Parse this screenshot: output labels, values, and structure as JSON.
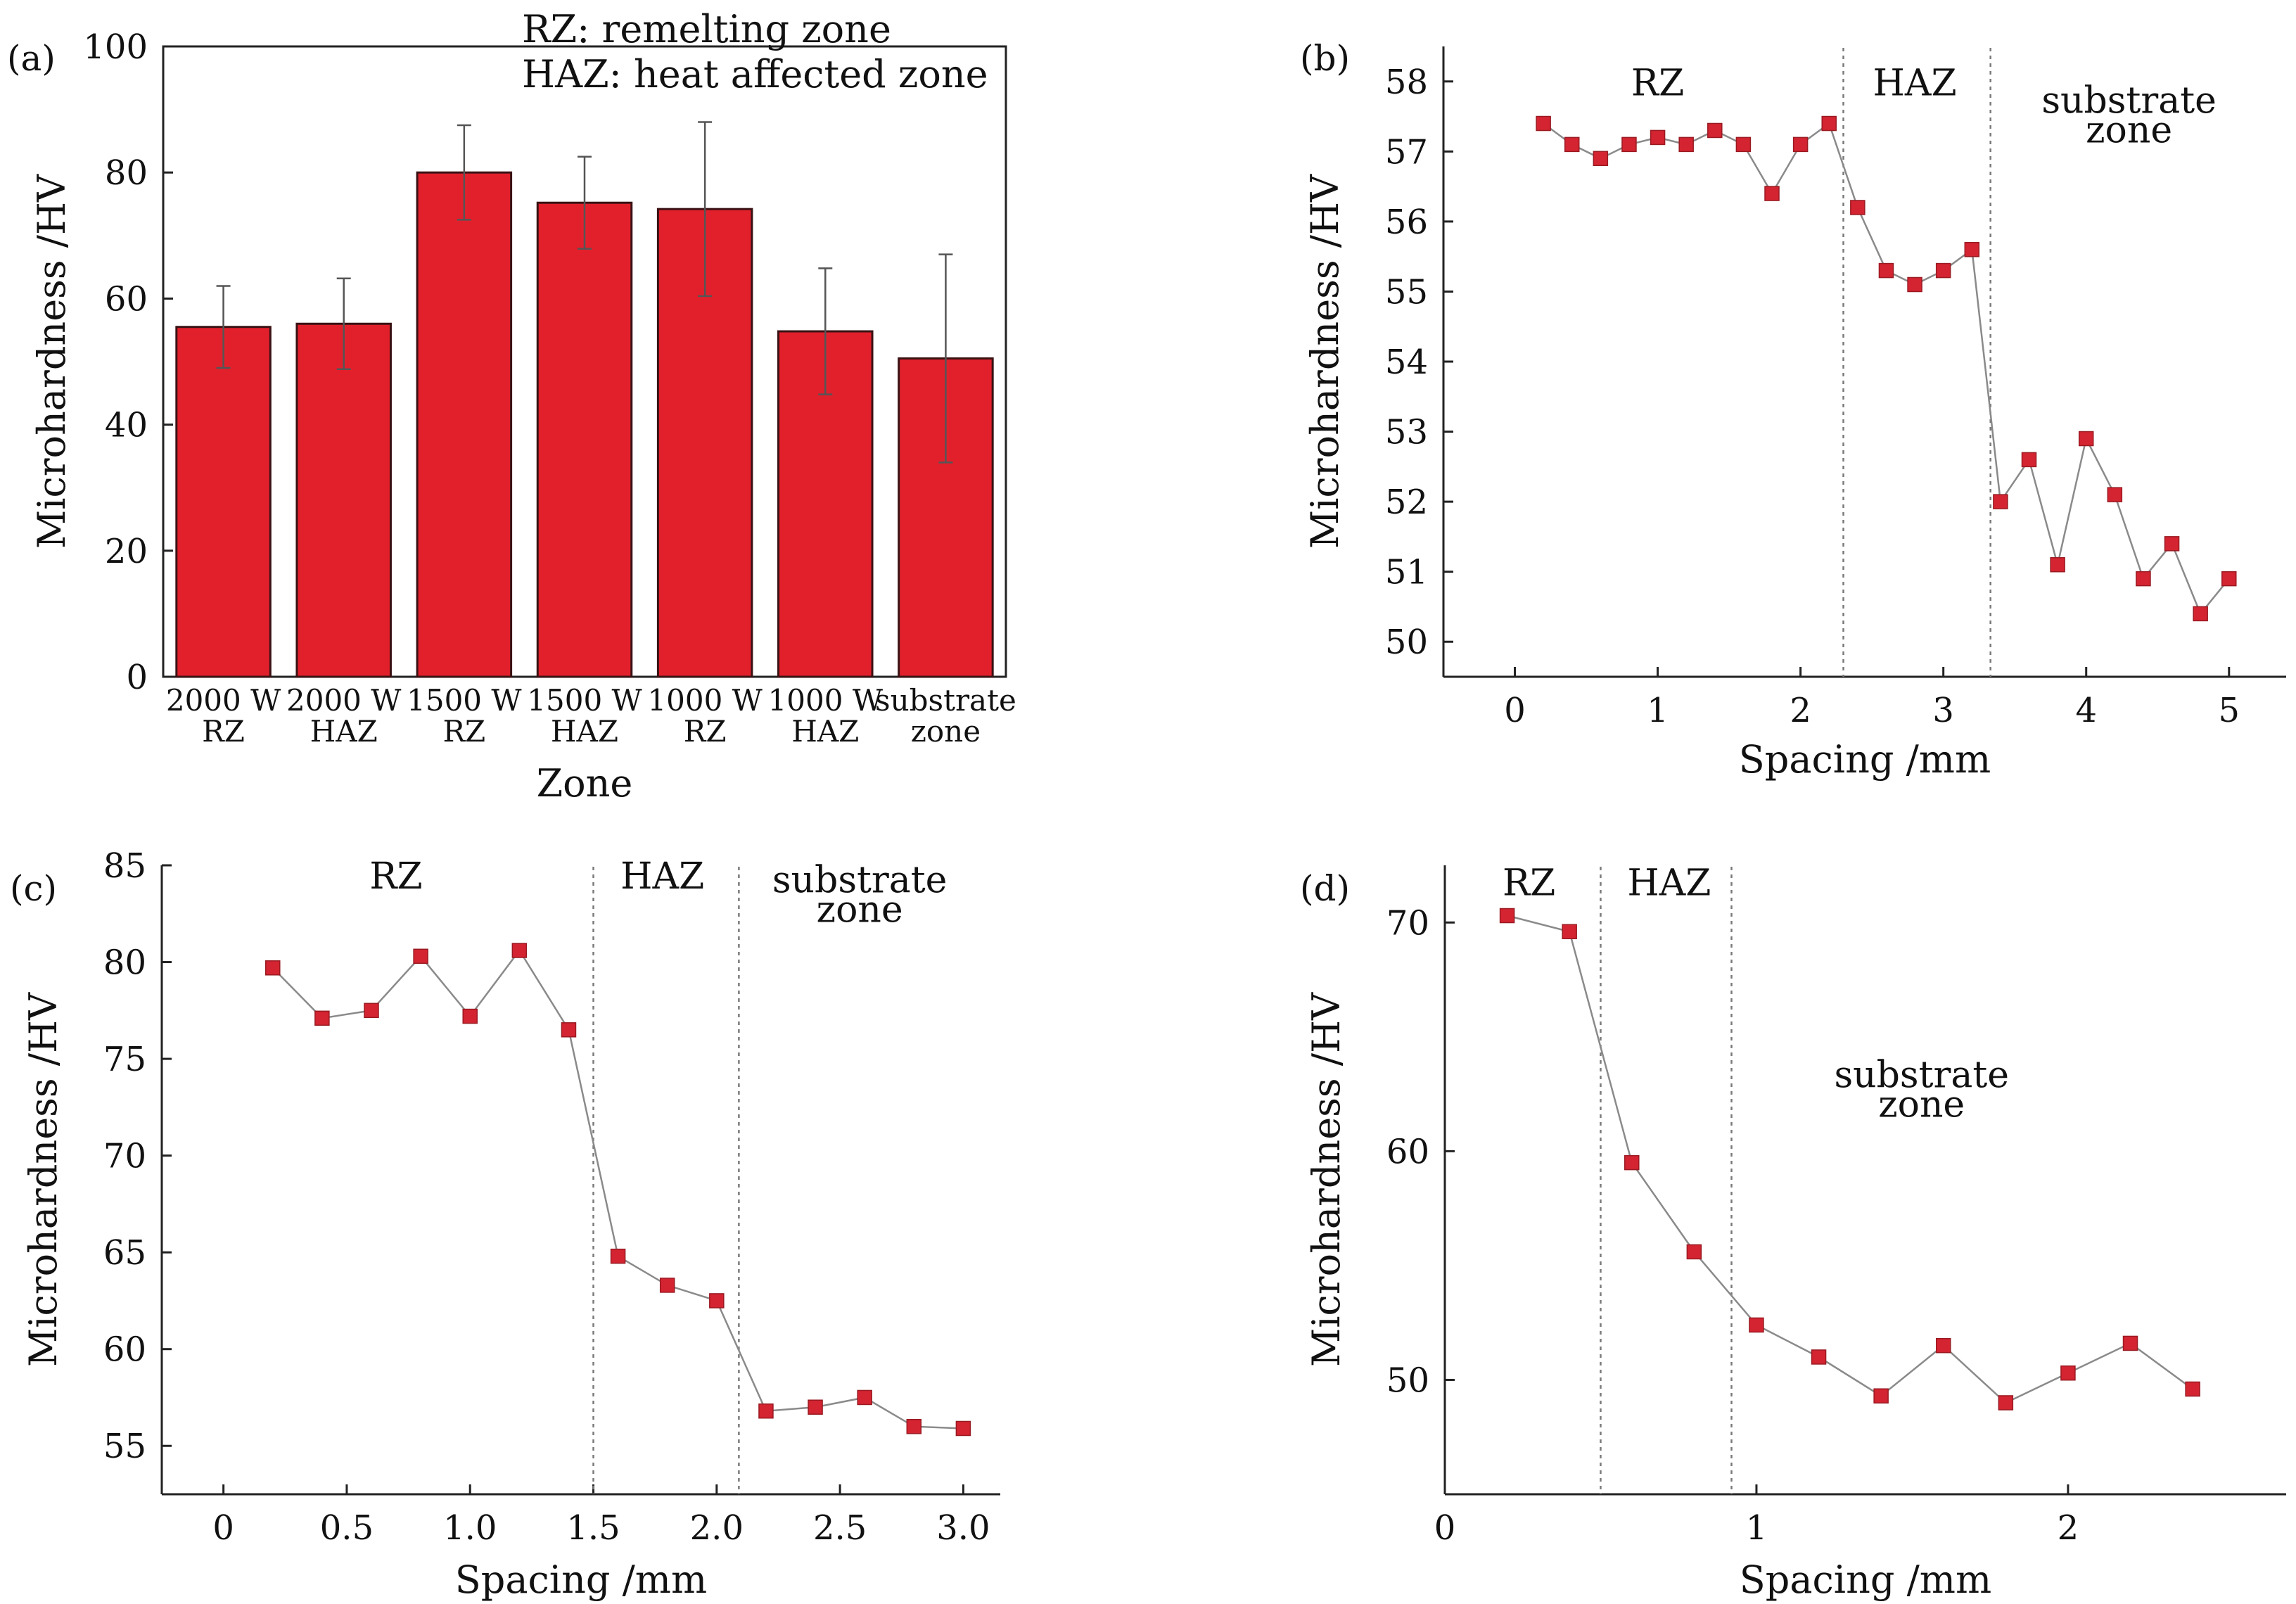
{
  "figure": {
    "colors": {
      "bar": "#e2202c",
      "marker": "#d42431",
      "line": "#8a8a8a",
      "axis": "#222222",
      "divider": "#7a7a7a"
    }
  },
  "chart_data": [
    {
      "panel": "(a)",
      "type": "bar",
      "ylabel": "Microhardness /HV",
      "xlabel": "Zone",
      "ylim": [
        0,
        100
      ],
      "yticks": [
        0,
        20,
        40,
        60,
        80,
        100
      ],
      "legend_lines": [
        "RZ: remelting zone",
        "HAZ: heat affected zone"
      ],
      "categories": [
        [
          "2000 W",
          "RZ"
        ],
        [
          "2000 W",
          "HAZ"
        ],
        [
          "1500 W",
          "RZ"
        ],
        [
          "1500 W",
          "HAZ"
        ],
        [
          "1000 W",
          "RZ"
        ],
        [
          "1000 W",
          "HAZ"
        ],
        [
          "substrate",
          "zone"
        ]
      ],
      "values": [
        55.5,
        56,
        80,
        75.2,
        74.2,
        54.8,
        50.5
      ],
      "errors": [
        6.5,
        7.2,
        7.5,
        7.3,
        13.8,
        10,
        16.5
      ]
    },
    {
      "panel": "(b)",
      "type": "line",
      "ylabel": "Microhardness /HV",
      "xlabel": "Spacing /mm",
      "xlim": [
        -0.5,
        5.4
      ],
      "ylim": [
        49.5,
        58.5
      ],
      "xticks": [
        0,
        1,
        2,
        3,
        4,
        5
      ],
      "xtick_labels": [
        "0",
        "1",
        "2",
        "3",
        "4",
        "5"
      ],
      "yticks": [
        50,
        51,
        52,
        53,
        54,
        55,
        56,
        57,
        58
      ],
      "dividers": [
        2.3,
        3.33
      ],
      "zones": [
        {
          "lines": [
            "RZ"
          ],
          "x": 1.0,
          "y": 57.8
        },
        {
          "lines": [
            "HAZ"
          ],
          "x": 2.8,
          "y": 57.8
        },
        {
          "lines": [
            "substrate",
            "zone"
          ],
          "x": 4.3,
          "y": 57.55
        }
      ],
      "x": [
        0.2,
        0.4,
        0.6,
        0.8,
        1.0,
        1.2,
        1.4,
        1.6,
        1.8,
        2.0,
        2.2,
        2.4,
        2.6,
        2.8,
        3.0,
        3.2,
        3.4,
        3.6,
        3.8,
        4.0,
        4.2,
        4.4,
        4.6,
        4.8,
        5.0
      ],
      "y": [
        57.4,
        57.1,
        56.9,
        57.1,
        57.2,
        57.1,
        57.3,
        57.1,
        56.4,
        57.1,
        57.4,
        56.2,
        55.3,
        55.1,
        55.3,
        55.6,
        52.0,
        52.6,
        51.1,
        52.9,
        52.1,
        50.9,
        51.4,
        50.4,
        50.9
      ]
    },
    {
      "panel": "(c)",
      "type": "line",
      "ylabel": "Microhardness /HV",
      "xlabel": "Spacing /mm",
      "xlim": [
        -0.25,
        3.15
      ],
      "ylim": [
        52.5,
        85
      ],
      "xticks": [
        0,
        0.5,
        1.0,
        1.5,
        2.0,
        2.5,
        3.0
      ],
      "xtick_labels": [
        "0",
        "0.5",
        "1.0",
        "1.5",
        "2.0",
        "2.5",
        "3.0"
      ],
      "yticks": [
        55,
        60,
        65,
        70,
        75,
        80,
        85
      ],
      "dividers": [
        1.5,
        2.09
      ],
      "zones": [
        {
          "lines": [
            "RZ"
          ],
          "x": 0.7,
          "y": 83.8
        },
        {
          "lines": [
            "HAZ"
          ],
          "x": 1.78,
          "y": 83.8
        },
        {
          "lines": [
            "substrate",
            "zone"
          ],
          "x": 2.58,
          "y": 83.6
        }
      ],
      "x": [
        0.2,
        0.4,
        0.6,
        0.8,
        1.0,
        1.2,
        1.4,
        1.6,
        1.8,
        2.0,
        2.2,
        2.4,
        2.6,
        2.8,
        3.0
      ],
      "y": [
        79.7,
        77.1,
        77.5,
        80.3,
        77.2,
        80.6,
        76.5,
        64.8,
        63.3,
        62.5,
        56.8,
        57.0,
        57.5,
        56.0,
        55.9
      ]
    },
    {
      "panel": "(d)",
      "type": "line",
      "ylabel": "Microhardness /HV",
      "xlabel": "Spacing /mm",
      "xlim": [
        0,
        2.7
      ],
      "ylim": [
        45,
        72.5
      ],
      "xticks": [
        0,
        1,
        2
      ],
      "xtick_labels": [
        "0",
        "1",
        "2"
      ],
      "yticks": [
        50,
        60,
        70
      ],
      "dividers": [
        0.5,
        0.92
      ],
      "zones": [
        {
          "lines": [
            "RZ"
          ],
          "x": 0.27,
          "y": 71.2
        },
        {
          "lines": [
            "HAZ"
          ],
          "x": 0.72,
          "y": 71.2
        },
        {
          "lines": [
            "substrate",
            "zone"
          ],
          "x": 1.53,
          "y": 62.8
        }
      ],
      "x": [
        0.2,
        0.4,
        0.6,
        0.8,
        1.0,
        1.2,
        1.4,
        1.6,
        1.8,
        2.0,
        2.2,
        2.4
      ],
      "y": [
        70.3,
        69.6,
        59.5,
        55.6,
        52.4,
        51.0,
        49.3,
        51.5,
        49.0,
        50.3,
        51.6,
        49.6
      ]
    }
  ]
}
